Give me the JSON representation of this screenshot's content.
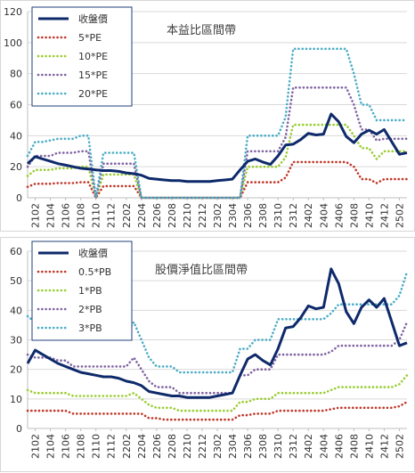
{
  "chart_data": [
    {
      "type": "line",
      "title": "本益比區間帶",
      "xlabel": "",
      "ylabel": "",
      "ylim": [
        0,
        120
      ],
      "yticks": [
        0,
        20,
        40,
        60,
        80,
        100,
        120
      ],
      "grid": true,
      "legend_position": "top-left",
      "x": [
        "2101",
        "2102",
        "2103",
        "2104",
        "2105",
        "2106",
        "2107",
        "2108",
        "2109",
        "2110",
        "2111",
        "2112",
        "2201",
        "2202",
        "2203",
        "2204",
        "2205",
        "2206",
        "2207",
        "2208",
        "2209",
        "2210",
        "2211",
        "2212",
        "2301",
        "2302",
        "2303",
        "2304",
        "2305",
        "2306",
        "2307",
        "2308",
        "2309",
        "2310",
        "2311",
        "2312",
        "2401",
        "2402",
        "2403",
        "2404",
        "2405",
        "2406",
        "2407",
        "2408",
        "2409",
        "2410",
        "2411",
        "2412",
        "2501",
        "2502",
        "2503"
      ],
      "x_tick_labels": [
        "2102",
        "2104",
        "2106",
        "2108",
        "2110",
        "2112",
        "2202",
        "2204",
        "2206",
        "2208",
        "2210",
        "2212",
        "2302",
        "2304",
        "2306",
        "2308",
        "2310",
        "2312",
        "2402",
        "2404",
        "2406",
        "2408",
        "2410",
        "2412",
        "2502"
      ],
      "series": [
        {
          "name": "收盤價",
          "color": "#0e2a6b",
          "style": "solid",
          "values": [
            22,
            26.5,
            25,
            23.5,
            22,
            21,
            20,
            19,
            18.5,
            18,
            17.5,
            17.5,
            17,
            16,
            15.5,
            14.5,
            12.5,
            12,
            11.5,
            11,
            11,
            10.5,
            10.5,
            10.5,
            10.5,
            11,
            11.5,
            12,
            18,
            23.5,
            25,
            23,
            21.5,
            27,
            34,
            34.5,
            37.5,
            41.5,
            40.5,
            41,
            54,
            49,
            39.5,
            35.5,
            41,
            43.5,
            41,
            44,
            36,
            28,
            29
          ]
        },
        {
          "name": "5*PE",
          "color": "#c0392b",
          "style": "dotted",
          "values": [
            7,
            9,
            9,
            9,
            9.5,
            9.5,
            9.5,
            10,
            10,
            0,
            7.5,
            7.5,
            7.5,
            7.5,
            7.5,
            0,
            0,
            0,
            0,
            0,
            0,
            0,
            0,
            0,
            0,
            0,
            0,
            0,
            0,
            10,
            10,
            10,
            10,
            10,
            13,
            23,
            23,
            23,
            23,
            23,
            23,
            23,
            23,
            20,
            12,
            12,
            9.5,
            12,
            12,
            12,
            12
          ]
        },
        {
          "name": "10*PE",
          "color": "#9acd32",
          "style": "dotted",
          "values": [
            14,
            18,
            18,
            18,
            19,
            19,
            19,
            20,
            20,
            0,
            15,
            15,
            15,
            15,
            15,
            0,
            0,
            0,
            0,
            0,
            0,
            0,
            0,
            0,
            0,
            0,
            0,
            0,
            0,
            20,
            20,
            20,
            20,
            20,
            26,
            47,
            47,
            47,
            47,
            47,
            47,
            47,
            47,
            40,
            32,
            32,
            25,
            30,
            30,
            30,
            30
          ]
        },
        {
          "name": "15*PE",
          "color": "#8064a2",
          "style": "dotted",
          "values": [
            20,
            27,
            27,
            27,
            29,
            29,
            29,
            30,
            30,
            0,
            22,
            22,
            22,
            22,
            22,
            0,
            0,
            0,
            0,
            0,
            0,
            0,
            0,
            0,
            0,
            0,
            0,
            0,
            0,
            30,
            30,
            30,
            30,
            30,
            39,
            71,
            71,
            71,
            71,
            71,
            71,
            71,
            71,
            60,
            44,
            44,
            37,
            38,
            38,
            38,
            38
          ]
        },
        {
          "name": "20*PE",
          "color": "#4bacc6",
          "style": "dotted",
          "values": [
            27,
            36,
            36,
            37,
            38,
            38,
            38,
            40,
            40,
            0,
            29,
            29,
            29,
            29,
            29,
            0,
            0,
            0,
            0,
            0,
            0,
            0,
            0,
            0,
            0,
            0,
            0,
            0,
            0,
            40,
            40,
            40,
            40,
            40,
            52,
            96,
            96,
            96,
            96,
            96,
            96,
            96,
            96,
            80,
            60,
            60,
            50,
            50,
            50,
            50,
            50
          ]
        }
      ]
    },
    {
      "type": "line",
      "title": "股價淨值比區間帶",
      "xlabel": "",
      "ylabel": "",
      "ylim": [
        0,
        60
      ],
      "yticks": [
        0,
        10,
        20,
        30,
        40,
        50,
        60
      ],
      "grid": true,
      "legend_position": "top-left",
      "x": [
        "2101",
        "2102",
        "2103",
        "2104",
        "2105",
        "2106",
        "2107",
        "2108",
        "2109",
        "2110",
        "2111",
        "2112",
        "2201",
        "2202",
        "2203",
        "2204",
        "2205",
        "2206",
        "2207",
        "2208",
        "2209",
        "2210",
        "2211",
        "2212",
        "2301",
        "2302",
        "2303",
        "2304",
        "2305",
        "2306",
        "2307",
        "2308",
        "2309",
        "2310",
        "2311",
        "2312",
        "2401",
        "2402",
        "2403",
        "2404",
        "2405",
        "2406",
        "2407",
        "2408",
        "2409",
        "2410",
        "2411",
        "2412",
        "2501",
        "2502",
        "2503"
      ],
      "x_tick_labels": [
        "2102",
        "2104",
        "2106",
        "2108",
        "2110",
        "2112",
        "2202",
        "2204",
        "2206",
        "2208",
        "2210",
        "2212",
        "2302",
        "2304",
        "2306",
        "2308",
        "2310",
        "2312",
        "2402",
        "2404",
        "2406",
        "2408",
        "2410",
        "2412",
        "2502"
      ],
      "series": [
        {
          "name": "收盤價",
          "color": "#0e2a6b",
          "style": "solid",
          "values": [
            22,
            26.5,
            25,
            23.5,
            22,
            21,
            20,
            19,
            18.5,
            18,
            17.5,
            17.5,
            17,
            16,
            15.5,
            14.5,
            12.5,
            12,
            11.5,
            11,
            11,
            10.5,
            10.5,
            10.5,
            10.5,
            11,
            11.5,
            12,
            18,
            23.5,
            25,
            23,
            21.5,
            27,
            34,
            34.5,
            37.5,
            41.5,
            40.5,
            41,
            54,
            49,
            39.5,
            35.5,
            41,
            43.5,
            41,
            44,
            36,
            28,
            29
          ]
        },
        {
          "name": "0.5*PB",
          "color": "#c0392b",
          "style": "dotted",
          "values": [
            6,
            6,
            6,
            6,
            6,
            6,
            5,
            5,
            5,
            5,
            5,
            5,
            5,
            5,
            5,
            5,
            3.5,
            3.5,
            3,
            3,
            3,
            3,
            3,
            3,
            3,
            3,
            3,
            3,
            4.5,
            4.5,
            5,
            5,
            5,
            6,
            6,
            6,
            6,
            6,
            6,
            6,
            6.5,
            7,
            7,
            7,
            7,
            7,
            7,
            7,
            7,
            7.5,
            9
          ]
        },
        {
          "name": "1*PB",
          "color": "#9acd32",
          "style": "dotted",
          "values": [
            13,
            12,
            12,
            12,
            12,
            12,
            11,
            11,
            11,
            11,
            11,
            11,
            11,
            11,
            12,
            10,
            8,
            7,
            7,
            7,
            6,
            6,
            6,
            6,
            6,
            6,
            6,
            6,
            9,
            9,
            10,
            10,
            10,
            12,
            12,
            12,
            12,
            12,
            12,
            12,
            13,
            14,
            14,
            14,
            14,
            14,
            14,
            14,
            14,
            15,
            18
          ]
        },
        {
          "name": "2*PB",
          "color": "#8064a2",
          "style": "dotted",
          "values": [
            25,
            24,
            24,
            24,
            23,
            23,
            21,
            21,
            21,
            21,
            21,
            21,
            21,
            21,
            24,
            20,
            16,
            14,
            14,
            14,
            12,
            12,
            12,
            12,
            12,
            12,
            12,
            12,
            18,
            18,
            20,
            20,
            20,
            25,
            25,
            25,
            25,
            25,
            25,
            25,
            26,
            28,
            28,
            28,
            28,
            28,
            28,
            28,
            28,
            30,
            36
          ]
        },
        {
          "name": "3*PB",
          "color": "#4bacc6",
          "style": "dotted",
          "values": [
            38,
            36,
            36,
            36,
            35,
            35,
            32,
            32,
            32,
            32,
            32,
            32,
            32,
            32,
            36,
            30,
            24,
            21,
            21,
            21,
            19,
            19,
            19,
            19,
            19,
            19,
            19,
            19,
            27,
            27,
            30,
            30,
            30,
            37,
            37,
            37,
            37,
            37,
            37,
            37,
            39,
            42,
            42,
            42,
            42,
            42,
            42,
            42,
            42,
            45,
            53
          ]
        }
      ]
    }
  ]
}
